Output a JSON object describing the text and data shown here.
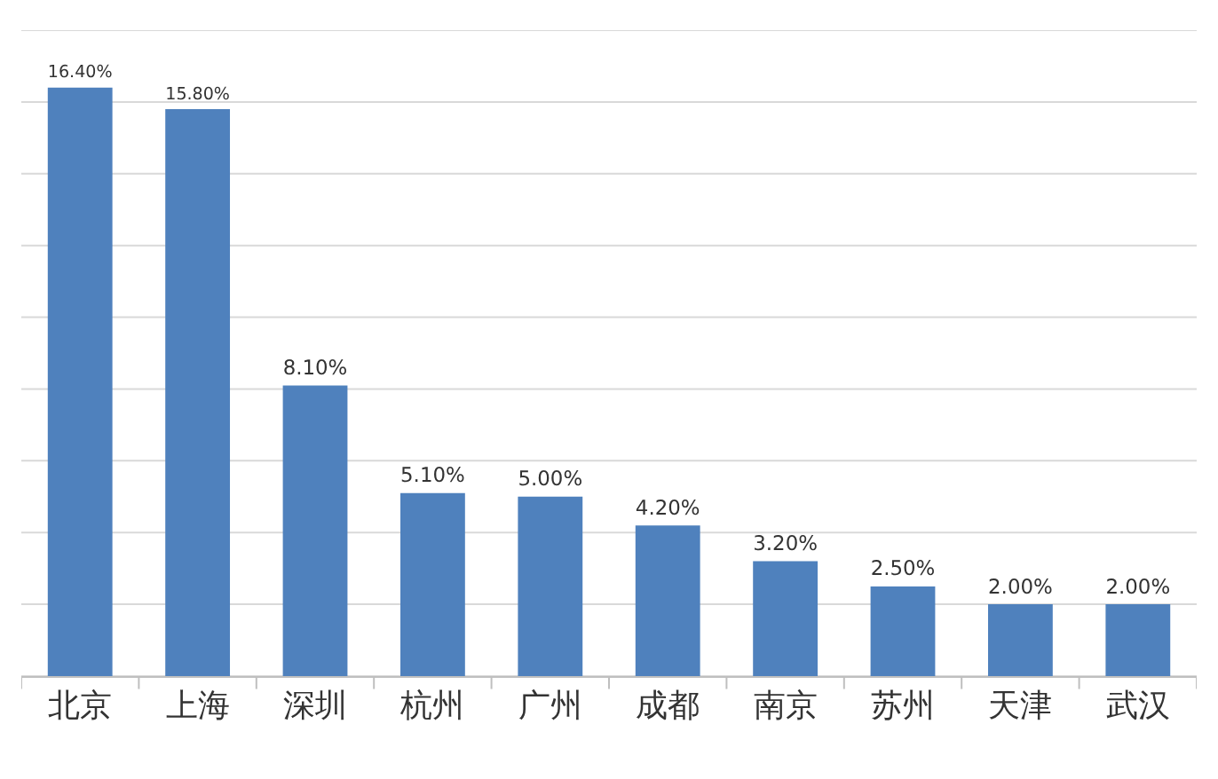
{
  "chart_data": {
    "type": "bar",
    "categories": [
      "北京",
      "上海",
      "深圳",
      "杭州",
      "广州",
      "成都",
      "南京",
      "苏州",
      "天津",
      "武汉"
    ],
    "values": [
      16.4,
      15.8,
      8.1,
      5.1,
      5.0,
      4.2,
      3.2,
      2.5,
      2.0,
      2.0
    ],
    "value_labels": [
      "16.40%",
      "15.80%",
      "8.10%",
      "5.10%",
      "5.00%",
      "4.20%",
      "3.20%",
      "2.50%",
      "2.00%",
      "2.00%"
    ],
    "color": "#4f81bd",
    "ylim": [
      0,
      18
    ],
    "yticks": [
      {
        "value": 0,
        "label": null
      },
      {
        "value": 2,
        "label": null
      },
      {
        "value": 4,
        "label": null
      },
      {
        "value": 6,
        "label": null
      },
      {
        "value": 8,
        "label": null
      },
      {
        "value": 10,
        "label": null
      },
      {
        "value": 12,
        "label": null
      },
      {
        "value": 14,
        "label": null
      },
      {
        "value": 16,
        "label": null
      },
      {
        "value": 18,
        "label": null
      }
    ],
    "tick_labels": "x",
    "grid": "y"
  }
}
